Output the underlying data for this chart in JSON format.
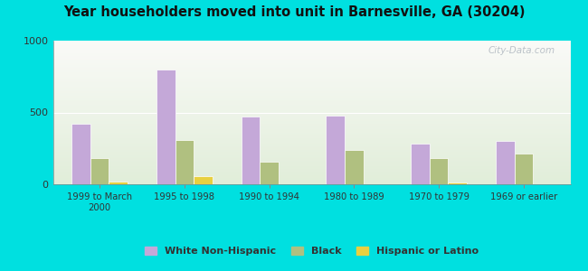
{
  "title": "Year householders moved into unit in Barnesville, GA (30204)",
  "categories": [
    "1999 to March\n2000",
    "1995 to 1998",
    "1990 to 1994",
    "1980 to 1989",
    "1970 to 1979",
    "1969 or earlier"
  ],
  "white_non_hispanic": [
    420,
    800,
    470,
    480,
    280,
    300
  ],
  "black": [
    185,
    310,
    155,
    240,
    185,
    215
  ],
  "hispanic_or_latino": [
    20,
    55,
    0,
    0,
    15,
    0
  ],
  "bar_colors": {
    "white": "#c4a8d8",
    "black": "#b0c080",
    "hispanic": "#e8d040"
  },
  "background_outer": "#00e0e0",
  "ylim": [
    0,
    1000
  ],
  "yticks": [
    0,
    500,
    1000
  ],
  "watermark": "City-Data.com",
  "legend_labels": [
    "White Non-Hispanic",
    "Black",
    "Hispanic or Latino"
  ],
  "bar_width": 0.22
}
